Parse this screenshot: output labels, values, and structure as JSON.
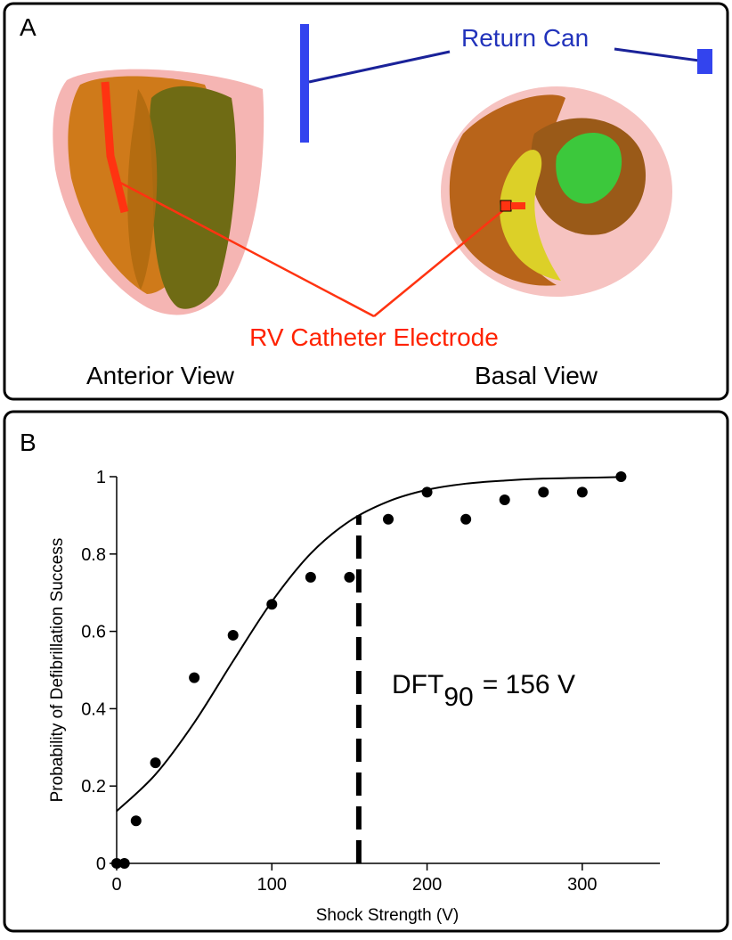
{
  "panel_a": {
    "label": "A",
    "return_can": "Return Can",
    "electrode": "RV Catheter Electrode",
    "anterior": "Anterior View",
    "basal": "Basal View"
  },
  "chart_data": {
    "type": "scatter",
    "panel_label": "B",
    "x_label": "Shock Strength (V)",
    "y_label": "Probability of Defibrillation Success",
    "x": [
      0,
      5,
      12.5,
      25,
      50,
      75,
      100,
      125,
      150,
      175,
      200,
      225,
      250,
      275,
      300,
      325
    ],
    "values": [
      0,
      0,
      0.11,
      0.26,
      0.48,
      0.59,
      0.67,
      0.74,
      0.74,
      0.89,
      0.96,
      0.89,
      0.94,
      0.96,
      0.96,
      1.0
    ],
    "color": "#000000",
    "fit": {
      "x": [
        0,
        25,
        50,
        75,
        100,
        125,
        150,
        175,
        200,
        225,
        250,
        275,
        300,
        325
      ],
      "values": [
        0.135,
        0.23,
        0.364,
        0.523,
        0.677,
        0.801,
        0.885,
        0.936,
        0.966,
        0.982,
        0.99,
        0.995,
        0.997,
        0.999
      ]
    },
    "threshold": {
      "x": 156,
      "y": 0.9
    },
    "annotation": {
      "text": "DFT",
      "subscript": "90",
      "suffix": "= 156 V"
    },
    "xlim": [
      0,
      350
    ],
    "ylim": [
      0,
      1
    ],
    "xticks": [
      0,
      100,
      200,
      300
    ],
    "yticks": [
      0,
      0.2,
      0.4,
      0.6,
      0.8,
      1
    ]
  }
}
